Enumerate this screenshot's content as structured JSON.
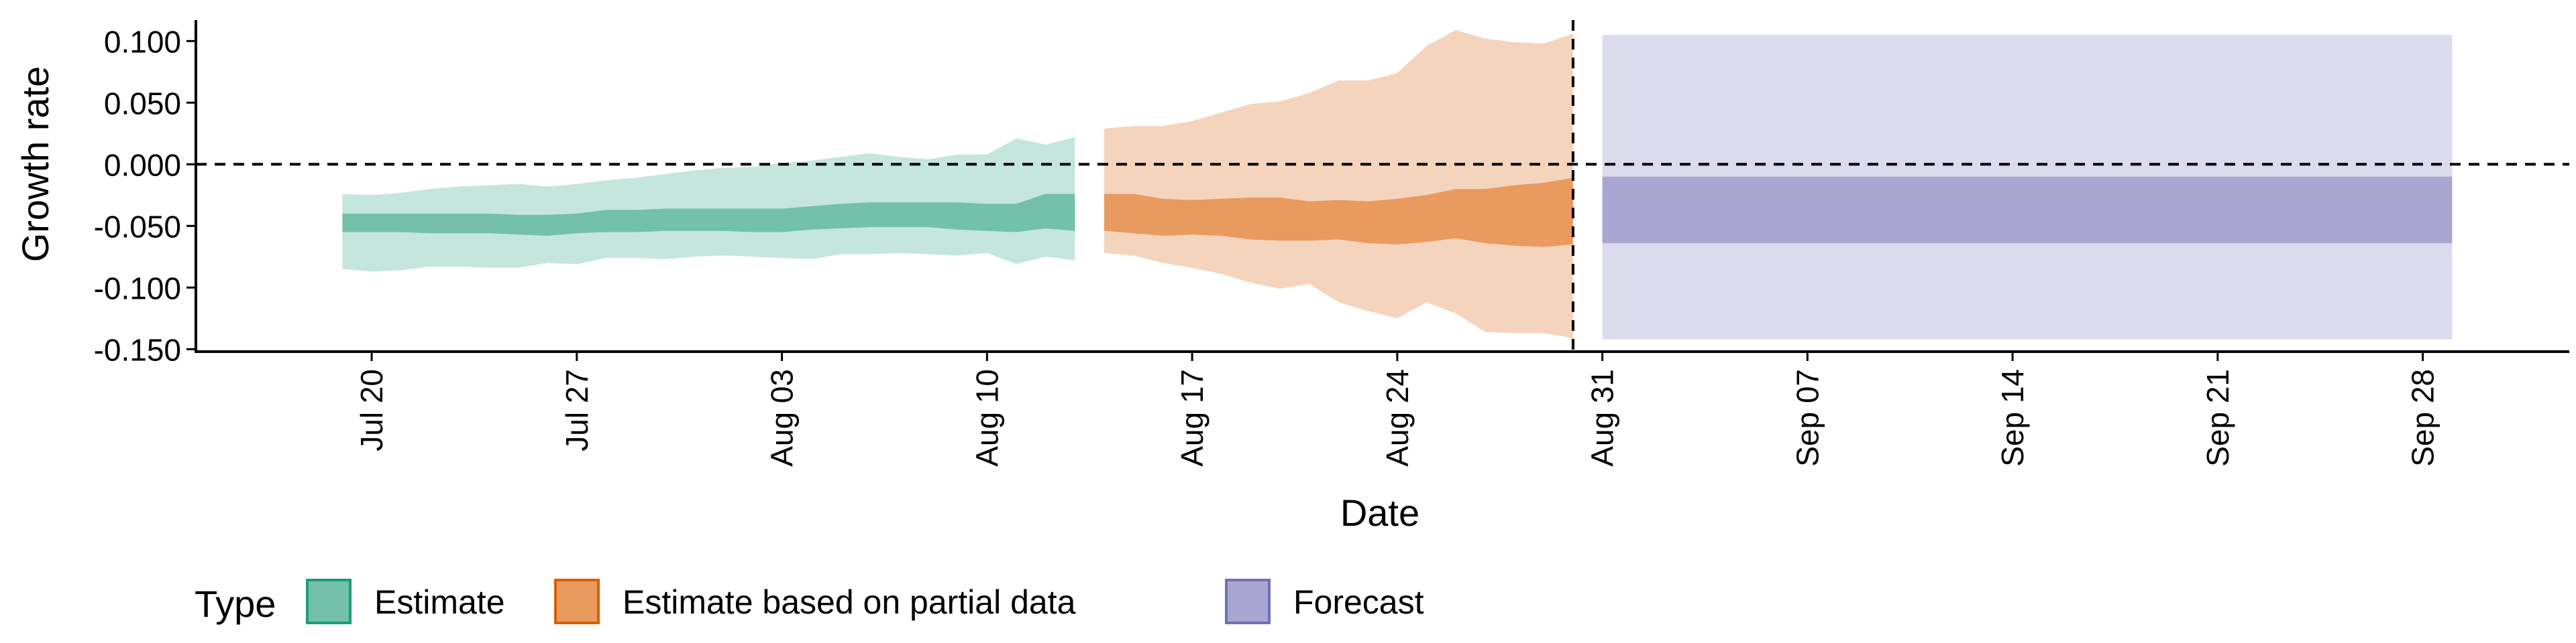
{
  "chart_data": {
    "type": "area",
    "title": "",
    "xlabel": "Date",
    "ylabel": "Growth rate",
    "ylim": [
      -0.152,
      0.117
    ],
    "xlim": [
      "2020-07-14",
      "2020-10-03"
    ],
    "y_ticks": [
      {
        "value": 0.1,
        "label": "0.100"
      },
      {
        "value": 0.05,
        "label": "0.050"
      },
      {
        "value": 0.0,
        "label": "0.000"
      },
      {
        "value": -0.05,
        "label": "-0.050"
      },
      {
        "value": -0.1,
        "label": "-0.100"
      },
      {
        "value": -0.15,
        "label": "-0.150"
      }
    ],
    "x_ticks": [
      {
        "date": "2020-07-20",
        "label": "Jul 20"
      },
      {
        "date": "2020-07-27",
        "label": "Jul 27"
      },
      {
        "date": "2020-08-03",
        "label": "Aug 03"
      },
      {
        "date": "2020-08-10",
        "label": "Aug 10"
      },
      {
        "date": "2020-08-17",
        "label": "Aug 17"
      },
      {
        "date": "2020-08-24",
        "label": "Aug 24"
      },
      {
        "date": "2020-08-31",
        "label": "Aug 31"
      },
      {
        "date": "2020-09-07",
        "label": "Sep 07"
      },
      {
        "date": "2020-09-14",
        "label": "Sep 14"
      },
      {
        "date": "2020-09-21",
        "label": "Sep 21"
      },
      {
        "date": "2020-09-28",
        "label": "Sep 28"
      }
    ],
    "reference_lines": {
      "horizontal_y": 0.0,
      "vertical_date": "2020-08-30"
    },
    "legend": {
      "title": "Type",
      "position": "bottom-left",
      "entries": [
        {
          "name": "Estimate",
          "fill": "#72c1a8",
          "border": "#1b9e77"
        },
        {
          "name": "Estimate based on partial data",
          "fill": "#e99a5e",
          "border": "#d95f02"
        },
        {
          "name": "Forecast",
          "fill": "#a9a6d1",
          "border": "#7570b3"
        }
      ]
    },
    "series": [
      {
        "name": "Estimate",
        "inner_color": "#72c1a8",
        "outer_color": "#c5e6dc",
        "points": [
          {
            "date": "2020-07-19",
            "lo90": -0.085,
            "lo50": -0.055,
            "hi50": -0.04,
            "hi90": -0.024
          },
          {
            "date": "2020-07-20",
            "lo90": -0.087,
            "lo50": -0.055,
            "hi50": -0.04,
            "hi90": -0.025
          },
          {
            "date": "2020-07-21",
            "lo90": -0.086,
            "lo50": -0.055,
            "hi50": -0.04,
            "hi90": -0.023
          },
          {
            "date": "2020-07-22",
            "lo90": -0.083,
            "lo50": -0.056,
            "hi50": -0.04,
            "hi90": -0.02
          },
          {
            "date": "2020-07-23",
            "lo90": -0.083,
            "lo50": -0.056,
            "hi50": -0.04,
            "hi90": -0.018
          },
          {
            "date": "2020-07-24",
            "lo90": -0.084,
            "lo50": -0.056,
            "hi50": -0.04,
            "hi90": -0.017
          },
          {
            "date": "2020-07-25",
            "lo90": -0.084,
            "lo50": -0.057,
            "hi50": -0.041,
            "hi90": -0.016
          },
          {
            "date": "2020-07-26",
            "lo90": -0.08,
            "lo50": -0.058,
            "hi50": -0.041,
            "hi90": -0.018
          },
          {
            "date": "2020-07-27",
            "lo90": -0.081,
            "lo50": -0.056,
            "hi50": -0.04,
            "hi90": -0.016
          },
          {
            "date": "2020-07-28",
            "lo90": -0.076,
            "lo50": -0.055,
            "hi50": -0.037,
            "hi90": -0.013
          },
          {
            "date": "2020-07-29",
            "lo90": -0.076,
            "lo50": -0.055,
            "hi50": -0.037,
            "hi90": -0.011
          },
          {
            "date": "2020-07-30",
            "lo90": -0.077,
            "lo50": -0.054,
            "hi50": -0.036,
            "hi90": -0.008
          },
          {
            "date": "2020-07-31",
            "lo90": -0.075,
            "lo50": -0.054,
            "hi50": -0.036,
            "hi90": -0.005
          },
          {
            "date": "2020-08-01",
            "lo90": -0.074,
            "lo50": -0.054,
            "hi50": -0.036,
            "hi90": -0.003
          },
          {
            "date": "2020-08-02",
            "lo90": -0.075,
            "lo50": -0.055,
            "hi50": -0.036,
            "hi90": -0.002
          },
          {
            "date": "2020-08-03",
            "lo90": -0.076,
            "lo50": -0.055,
            "hi50": -0.036,
            "hi90": 0.001
          },
          {
            "date": "2020-08-04",
            "lo90": -0.077,
            "lo50": -0.053,
            "hi50": -0.034,
            "hi90": 0.003
          },
          {
            "date": "2020-08-05",
            "lo90": -0.073,
            "lo50": -0.052,
            "hi50": -0.032,
            "hi90": 0.006
          },
          {
            "date": "2020-08-06",
            "lo90": -0.073,
            "lo50": -0.051,
            "hi50": -0.031,
            "hi90": 0.009
          },
          {
            "date": "2020-08-07",
            "lo90": -0.072,
            "lo50": -0.051,
            "hi50": -0.031,
            "hi90": 0.006
          },
          {
            "date": "2020-08-08",
            "lo90": -0.073,
            "lo50": -0.051,
            "hi50": -0.031,
            "hi90": 0.004
          },
          {
            "date": "2020-08-09",
            "lo90": -0.074,
            "lo50": -0.053,
            "hi50": -0.031,
            "hi90": 0.008
          },
          {
            "date": "2020-08-10",
            "lo90": -0.072,
            "lo50": -0.054,
            "hi50": -0.032,
            "hi90": 0.008
          },
          {
            "date": "2020-08-11",
            "lo90": -0.081,
            "lo50": -0.055,
            "hi50": -0.032,
            "hi90": 0.021
          },
          {
            "date": "2020-08-12",
            "lo90": -0.075,
            "lo50": -0.052,
            "hi50": -0.024,
            "hi90": 0.016
          },
          {
            "date": "2020-08-13",
            "lo90": -0.078,
            "lo50": -0.054,
            "hi50": -0.024,
            "hi90": 0.022
          }
        ]
      },
      {
        "name": "Estimate based on partial data",
        "inner_color": "#e99a5e",
        "outer_color": "#f5d4bd",
        "points": [
          {
            "date": "2020-08-14",
            "lo90": -0.072,
            "lo50": -0.054,
            "hi50": -0.024,
            "hi90": 0.029
          },
          {
            "date": "2020-08-15",
            "lo90": -0.074,
            "lo50": -0.056,
            "hi50": -0.024,
            "hi90": 0.031
          },
          {
            "date": "2020-08-16",
            "lo90": -0.08,
            "lo50": -0.058,
            "hi50": -0.028,
            "hi90": 0.031
          },
          {
            "date": "2020-08-17",
            "lo90": -0.084,
            "lo50": -0.057,
            "hi50": -0.029,
            "hi90": 0.035
          },
          {
            "date": "2020-08-18",
            "lo90": -0.089,
            "lo50": -0.058,
            "hi50": -0.028,
            "hi90": 0.042
          },
          {
            "date": "2020-08-19",
            "lo90": -0.096,
            "lo50": -0.061,
            "hi50": -0.027,
            "hi90": 0.049
          },
          {
            "date": "2020-08-20",
            "lo90": -0.101,
            "lo50": -0.062,
            "hi50": -0.027,
            "hi90": 0.051
          },
          {
            "date": "2020-08-21",
            "lo90": -0.097,
            "lo50": -0.062,
            "hi50": -0.03,
            "hi90": 0.058
          },
          {
            "date": "2020-08-22",
            "lo90": -0.112,
            "lo50": -0.061,
            "hi50": -0.029,
            "hi90": 0.068
          },
          {
            "date": "2020-08-23",
            "lo90": -0.119,
            "lo50": -0.064,
            "hi50": -0.03,
            "hi90": 0.068
          },
          {
            "date": "2020-08-24",
            "lo90": -0.125,
            "lo50": -0.065,
            "hi50": -0.028,
            "hi90": 0.074
          },
          {
            "date": "2020-08-25",
            "lo90": -0.112,
            "lo50": -0.063,
            "hi50": -0.025,
            "hi90": 0.096
          },
          {
            "date": "2020-08-26",
            "lo90": -0.121,
            "lo50": -0.06,
            "hi50": -0.02,
            "hi90": 0.109
          },
          {
            "date": "2020-08-27",
            "lo90": -0.136,
            "lo50": -0.064,
            "hi50": -0.02,
            "hi90": 0.102
          },
          {
            "date": "2020-08-28",
            "lo90": -0.137,
            "lo50": -0.066,
            "hi50": -0.017,
            "hi90": 0.099
          },
          {
            "date": "2020-08-29",
            "lo90": -0.137,
            "lo50": -0.067,
            "hi50": -0.015,
            "hi90": 0.098
          },
          {
            "date": "2020-08-30",
            "lo90": -0.141,
            "lo50": -0.065,
            "hi50": -0.011,
            "hi90": 0.106
          }
        ]
      },
      {
        "name": "Forecast",
        "inner_color": "#a9a6d1",
        "outer_color": "#dcdbee",
        "points": [
          {
            "date": "2020-08-31",
            "lo90": -0.142,
            "lo50": -0.064,
            "hi50": -0.01,
            "hi90": 0.105
          },
          {
            "date": "2020-09-29",
            "lo90": -0.142,
            "lo50": -0.064,
            "hi50": -0.01,
            "hi90": 0.105
          }
        ]
      }
    ]
  }
}
